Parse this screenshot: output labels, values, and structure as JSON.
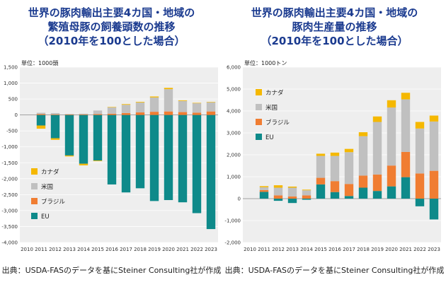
{
  "source_text": "出典：USDA-FASのデータを基にSteiner Consulting社が作成",
  "colors": {
    "EU": "#0e8a8a",
    "ブラジル": "#f07d32",
    "米国": "#c0c0c0",
    "カナダ": "#f5b800",
    "background": "#eeeeee",
    "title": "#1a3a8f"
  },
  "chart_data": [
    {
      "type": "bar",
      "stacked": true,
      "title_lines": [
        "世界の豚肉輸出主要4カ国・地域の",
        "繁殖母豚の飼養頭数の推移",
        "（2010年を100とした場合）"
      ],
      "unit_label": "単位：1000頭",
      "ylim": [
        -4000,
        1500
      ],
      "yticks": [
        1500,
        1000,
        500,
        0,
        -500,
        -1000,
        -1500,
        -2000,
        -2500,
        -3000,
        -3500,
        -4000
      ],
      "ytick_labels": [
        "1,500",
        "1,000",
        "500",
        "0",
        "-500",
        "-1,000",
        "-1,500",
        "-2,000",
        "-2,500",
        "-3,000",
        "-3,500",
        "-4,000"
      ],
      "categories": [
        "2010",
        "2011",
        "2012",
        "2013",
        "2014",
        "2015",
        "2016",
        "2017",
        "2018",
        "2019",
        "2020",
        "2021",
        "2022",
        "2023"
      ],
      "legend": [
        "カナダ",
        "米国",
        "ブラジル",
        "EU"
      ],
      "legend_position": "lower-left",
      "series": [
        {
          "name": "EU",
          "values": [
            0,
            -330,
            -730,
            -1270,
            -1530,
            -1430,
            -2180,
            -2430,
            -2300,
            -2700,
            -2670,
            -2740,
            -3080,
            -3580
          ]
        },
        {
          "name": "ブラジル",
          "values": [
            0,
            30,
            20,
            20,
            20,
            30,
            40,
            60,
            80,
            100,
            110,
            90,
            70,
            110
          ]
        },
        {
          "name": "米国",
          "values": [
            0,
            40,
            40,
            10,
            20,
            110,
            200,
            260,
            310,
            450,
            700,
            350,
            300,
            290
          ]
        },
        {
          "name": "カナダ",
          "values": [
            0,
            -100,
            -50,
            -30,
            -50,
            -20,
            10,
            20,
            20,
            30,
            40,
            20,
            10,
            10
          ]
        }
      ]
    },
    {
      "type": "bar",
      "stacked": true,
      "title_lines": [
        "世界の豚肉輸出主要4カ国・地域の",
        "豚肉生産量の推移",
        "（2010年を100とした場合）"
      ],
      "unit_label": "単位：1000トン",
      "ylim": [
        -2000,
        6000
      ],
      "yticks": [
        6000,
        5000,
        4000,
        3000,
        2000,
        1000,
        0,
        -1000,
        -2000
      ],
      "ytick_labels": [
        "6,000",
        "5,000",
        "4,000",
        "3,000",
        "2,000",
        "1,000",
        "0",
        "-1,000",
        "-2,000"
      ],
      "categories": [
        "2010",
        "2011",
        "2012",
        "2013",
        "2014",
        "2015",
        "2016",
        "2017",
        "2018",
        "2019",
        "2020",
        "2021",
        "2022",
        "2023"
      ],
      "legend": [
        "カナダ",
        "米国",
        "ブラジル",
        "EU"
      ],
      "legend_position": "upper-left",
      "series": [
        {
          "name": "EU",
          "values": [
            0,
            310,
            -100,
            -200,
            -50,
            650,
            300,
            120,
            500,
            350,
            560,
            980,
            -350,
            -950
          ]
        },
        {
          "name": "ブラジル",
          "values": [
            0,
            80,
            150,
            100,
            150,
            300,
            500,
            550,
            550,
            750,
            950,
            1150,
            1150,
            1270
          ]
        },
        {
          "name": "米国",
          "values": [
            0,
            130,
            350,
            400,
            230,
            1000,
            1150,
            1450,
            1800,
            2400,
            2650,
            2400,
            2050,
            2250
          ]
        },
        {
          "name": "カナダ",
          "values": [
            0,
            50,
            110,
            50,
            30,
            100,
            150,
            150,
            180,
            250,
            330,
            300,
            300,
            270
          ]
        }
      ]
    }
  ]
}
